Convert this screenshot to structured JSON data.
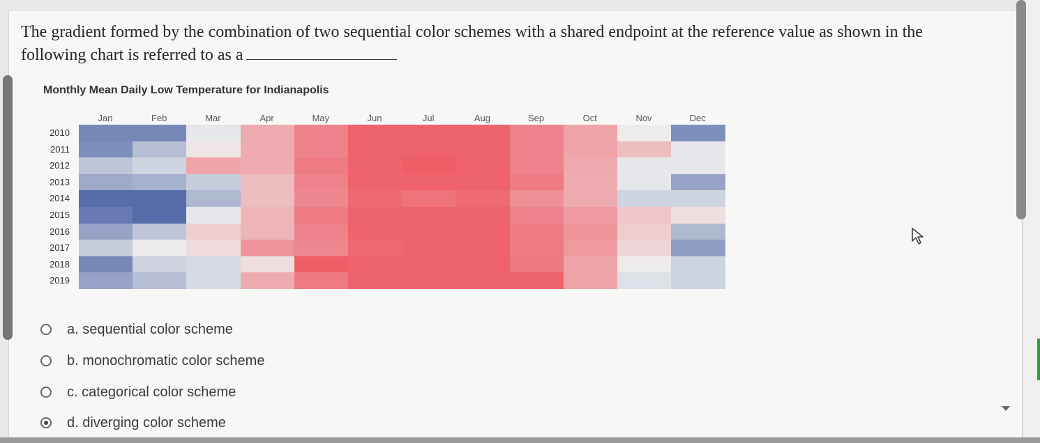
{
  "question": {
    "text": "The gradient formed by the combination of two sequential color schemes with a shared endpoint at the reference value as shown in the following chart is referred to as a"
  },
  "chart_data": {
    "type": "heatmap",
    "title": "Monthly Mean Daily Low Temperature for Indianapolis",
    "x_categories": [
      "Jan",
      "Feb",
      "Mar",
      "Apr",
      "May",
      "Jun",
      "Jul",
      "Aug",
      "Sep",
      "Oct",
      "Nov",
      "Dec"
    ],
    "y_categories": [
      "2010",
      "2011",
      "2012",
      "2013",
      "2014",
      "2015",
      "2016",
      "2017",
      "2018",
      "2019"
    ],
    "color_scale": {
      "low": "#4f66a6",
      "mid": "#eeeeee",
      "high": "#ee4a55"
    },
    "values": [
      [
        -0.75,
        -0.75,
        -0.05,
        0.4,
        0.65,
        0.85,
        0.85,
        0.85,
        0.65,
        0.45,
        0.02,
        -0.7
      ],
      [
        -0.7,
        -0.35,
        0.05,
        0.4,
        0.65,
        0.85,
        0.85,
        0.85,
        0.65,
        0.45,
        0.3,
        -0.05
      ],
      [
        -0.3,
        -0.2,
        0.45,
        0.4,
        0.7,
        0.85,
        0.88,
        0.85,
        0.65,
        0.42,
        -0.05,
        -0.05
      ],
      [
        -0.5,
        -0.45,
        -0.25,
        0.3,
        0.65,
        0.85,
        0.85,
        0.85,
        0.7,
        0.4,
        -0.05,
        -0.55
      ],
      [
        -0.95,
        -0.95,
        -0.4,
        0.3,
        0.62,
        0.82,
        0.75,
        0.8,
        0.58,
        0.4,
        -0.2,
        -0.2
      ],
      [
        -0.85,
        -0.95,
        -0.05,
        0.35,
        0.7,
        0.85,
        0.85,
        0.85,
        0.65,
        0.5,
        0.25,
        0.1
      ],
      [
        -0.55,
        -0.3,
        0.2,
        0.35,
        0.65,
        0.85,
        0.85,
        0.85,
        0.7,
        0.55,
        0.2,
        -0.4
      ],
      [
        -0.25,
        -0.02,
        0.12,
        0.55,
        0.62,
        0.82,
        0.85,
        0.85,
        0.7,
        0.52,
        0.15,
        -0.6
      ],
      [
        -0.75,
        -0.2,
        -0.15,
        0.1,
        0.88,
        0.85,
        0.85,
        0.85,
        0.72,
        0.45,
        0.02,
        -0.2
      ],
      [
        -0.55,
        -0.35,
        -0.15,
        0.4,
        0.7,
        0.85,
        0.85,
        0.85,
        0.85,
        0.45,
        -0.1,
        -0.2
      ]
    ]
  },
  "options": [
    {
      "label": "a. sequential color scheme",
      "selected": false
    },
    {
      "label": "b. monochromatic color scheme",
      "selected": false
    },
    {
      "label": "c. categorical color scheme",
      "selected": false
    },
    {
      "label": "d. diverging color scheme",
      "selected": true
    }
  ],
  "icons": {
    "cursor": "arrow-pointer-icon",
    "scroll_down": "chevron-down-icon"
  }
}
